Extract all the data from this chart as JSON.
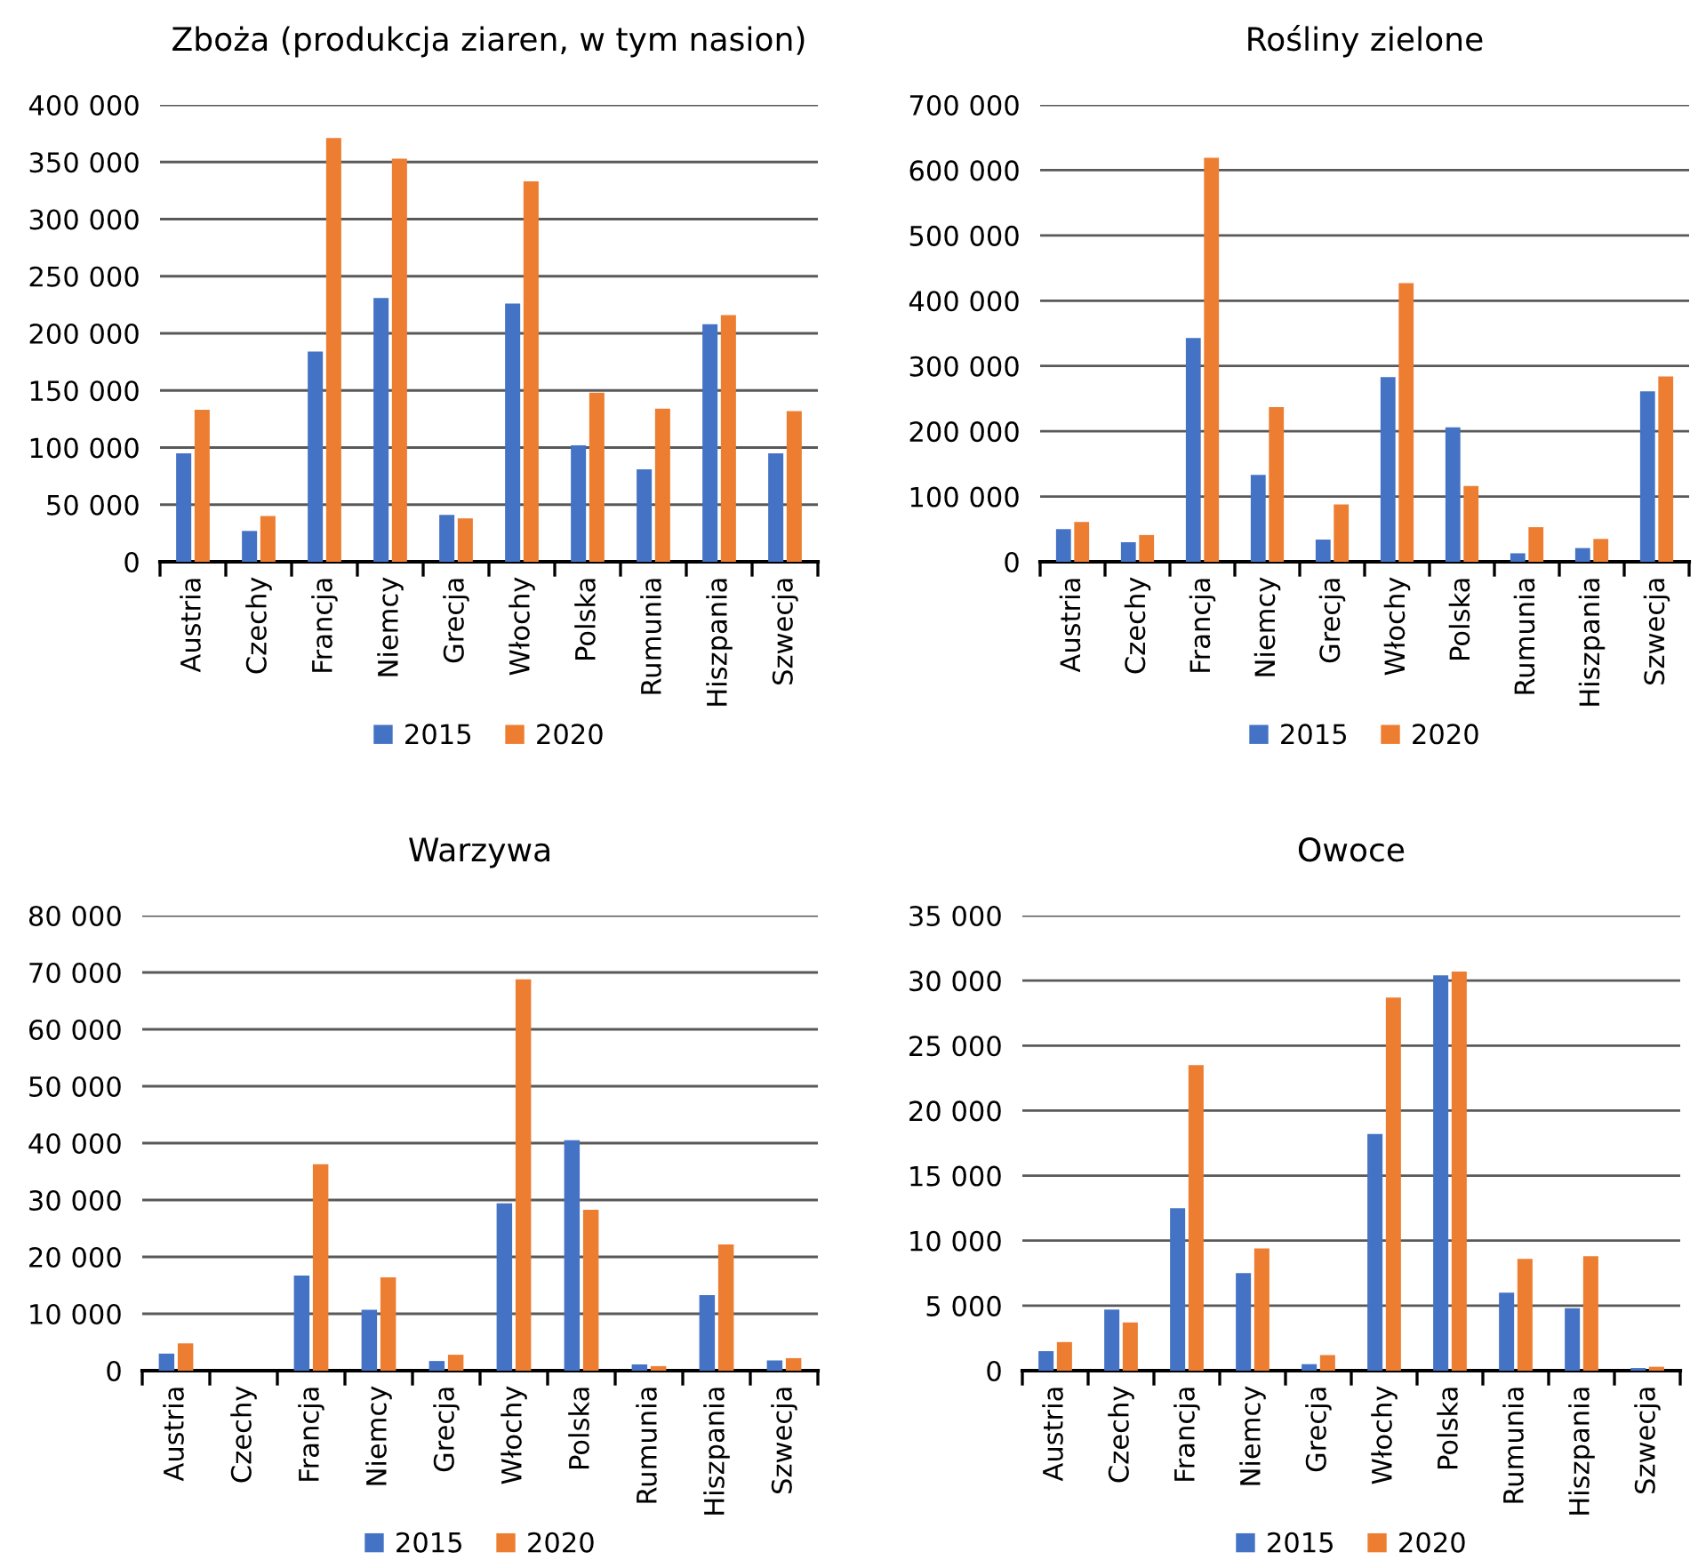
{
  "chart_data": [
    {
      "type": "bar",
      "title": "Zboża (produkcja ziaren, w tym nasion)",
      "categories": [
        "Austria",
        "Czechy",
        "Francja",
        "Niemcy",
        "Grecja",
        "Włochy",
        "Polska",
        "Rumunia",
        "Hiszpania",
        "Szwecja"
      ],
      "series": [
        {
          "name": "2015",
          "color": "#4472c4",
          "values": [
            95000,
            27000,
            184000,
            231000,
            41000,
            226000,
            102000,
            81000,
            208000,
            95000
          ]
        },
        {
          "name": "2020",
          "color": "#ed7d31",
          "values": [
            133000,
            40000,
            371000,
            353000,
            38000,
            333000,
            148000,
            134000,
            216000,
            132000
          ]
        }
      ],
      "ylim": [
        0,
        400000
      ],
      "yticks": [
        0,
        {
          "value": 50000,
          "label": "50 000"
        },
        {
          "value": 100000,
          "label": "100 000"
        },
        {
          "value": 150000,
          "label": "150 000"
        },
        {
          "value": 200000,
          "label": "200 000"
        },
        {
          "value": 250000,
          "label": "250 000"
        },
        {
          "value": 300000,
          "label": "300 000"
        },
        {
          "value": 350000,
          "label": "350 000"
        },
        {
          "value": 400000,
          "label": "400 000"
        }
      ],
      "grid": "y",
      "legend": "bottom"
    },
    {
      "type": "bar",
      "title": "Rośliny zielone",
      "categories": [
        "Austria",
        "Czechy",
        "Francja",
        "Niemcy",
        "Grecja",
        "Włochy",
        "Polska",
        "Rumunia",
        "Hiszpania",
        "Szwecja"
      ],
      "series": [
        {
          "name": "2015",
          "color": "#4472c4",
          "values": [
            50000,
            30000,
            343000,
            133000,
            34000,
            283000,
            206000,
            13000,
            21000,
            261000
          ]
        },
        {
          "name": "2020",
          "color": "#ed7d31",
          "values": [
            61000,
            41000,
            619000,
            237000,
            88000,
            427000,
            116000,
            53000,
            35000,
            284000
          ]
        }
      ],
      "ylim": [
        0,
        700000
      ],
      "yticks": [
        0,
        {
          "value": 100000,
          "label": "100 000"
        },
        {
          "value": 200000,
          "label": "200 000"
        },
        {
          "value": 300000,
          "label": "300 000"
        },
        {
          "value": 400000,
          "label": "400 000"
        },
        {
          "value": 500000,
          "label": "500 000"
        },
        {
          "value": 600000,
          "label": "600 000"
        },
        {
          "value": 700000,
          "label": "700 000"
        }
      ],
      "grid": "y",
      "legend": "bottom"
    },
    {
      "type": "bar",
      "title": "Warzywa",
      "categories": [
        "Austria",
        "Czechy",
        "Francja",
        "Niemcy",
        "Grecja",
        "Włochy",
        "Polska",
        "Rumunia",
        "Hiszpania",
        "Szwecja"
      ],
      "series": [
        {
          "name": "2015",
          "color": "#4472c4",
          "values": [
            3000,
            0,
            16700,
            10700,
            1700,
            29400,
            40500,
            1100,
            13300,
            1800
          ]
        },
        {
          "name": "2020",
          "color": "#ed7d31",
          "values": [
            4800,
            0,
            36300,
            16400,
            2800,
            68800,
            28300,
            800,
            22200,
            2200
          ]
        }
      ],
      "ylim": [
        0,
        80000
      ],
      "yticks": [
        0,
        {
          "value": 10000,
          "label": "10 000"
        },
        {
          "value": 20000,
          "label": "20 000"
        },
        {
          "value": 30000,
          "label": "30 000"
        },
        {
          "value": 40000,
          "label": "40 000"
        },
        {
          "value": 50000,
          "label": "50 000"
        },
        {
          "value": 60000,
          "label": "60 000"
        },
        {
          "value": 70000,
          "label": "70 000"
        },
        {
          "value": 80000,
          "label": "80 000"
        }
      ],
      "grid": "y",
      "legend": "bottom"
    },
    {
      "type": "bar",
      "title": "Owoce",
      "categories": [
        "Austria",
        "Czechy",
        "Francja",
        "Niemcy",
        "Grecja",
        "Włochy",
        "Polska",
        "Rumunia",
        "Hiszpania",
        "Szwecja"
      ],
      "series": [
        {
          "name": "2015",
          "color": "#4472c4",
          "values": [
            1500,
            4700,
            12500,
            7500,
            500,
            18200,
            30400,
            6000,
            4800,
            200
          ]
        },
        {
          "name": "2020",
          "color": "#ed7d31",
          "values": [
            2200,
            3700,
            23500,
            9400,
            1200,
            28700,
            30700,
            8600,
            8800,
            300
          ]
        }
      ],
      "ylim": [
        0,
        35000
      ],
      "yticks": [
        0,
        {
          "value": 5000,
          "label": "5 000"
        },
        {
          "value": 10000,
          "label": "10 000"
        },
        {
          "value": 15000,
          "label": "15 000"
        },
        {
          "value": 20000,
          "label": "20 000"
        },
        {
          "value": 25000,
          "label": "25 000"
        },
        {
          "value": 30000,
          "label": "30 000"
        },
        {
          "value": 35000,
          "label": "35 000"
        }
      ],
      "grid": "y",
      "legend": "bottom"
    }
  ]
}
